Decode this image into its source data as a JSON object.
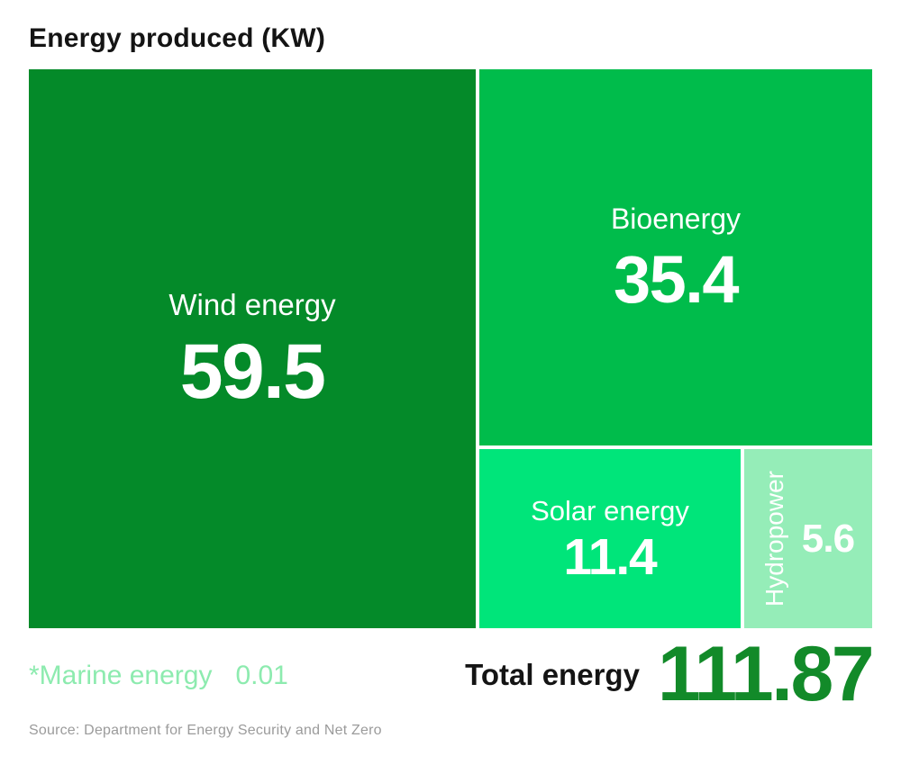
{
  "title": "Energy produced (KW)",
  "colors": {
    "wind": "#048A29",
    "bioenergy": "#00BC4B",
    "solar": "#00E57A",
    "hydropower": "#95EDB8",
    "marine_text": "#8DEBAF",
    "total_value_text": "#128A29",
    "title_text": "#141414",
    "source_text": "#9B9B9B",
    "tile_text": "#FFFFFF"
  },
  "chart_data": {
    "type": "treemap",
    "title": "Energy produced (KW)",
    "unit": "KW",
    "legend_position": "none",
    "grid": false,
    "items": [
      {
        "label": "Wind energy",
        "value": 59.5,
        "display_value": "59.5",
        "color": "#048A29",
        "label_rotation": 0
      },
      {
        "label": "Bioenergy",
        "value": 35.4,
        "display_value": "35.4",
        "color": "#00BC4B",
        "label_rotation": 0
      },
      {
        "label": "Solar energy",
        "value": 11.4,
        "display_value": "11.4",
        "color": "#00E57A",
        "label_rotation": 0
      },
      {
        "label": "Hydropower",
        "value": 5.6,
        "display_value": "5.6",
        "color": "#95EDB8",
        "label_rotation": -90
      },
      {
        "label": "*Marine energy",
        "value": 0.01,
        "display_value": "0.01",
        "color": "#8DEBAF",
        "rendered_as": "footnote"
      }
    ],
    "total": {
      "label": "Total energy",
      "value": 111.87,
      "display_value": "111.87"
    },
    "source": "Source: Department for Energy Security and Net Zero"
  },
  "footnote": {
    "label": "*Marine energy",
    "value": "0.01"
  },
  "total": {
    "label": "Total energy",
    "value": "111.87"
  },
  "source": "Source: Department for Energy Security and Net Zero"
}
